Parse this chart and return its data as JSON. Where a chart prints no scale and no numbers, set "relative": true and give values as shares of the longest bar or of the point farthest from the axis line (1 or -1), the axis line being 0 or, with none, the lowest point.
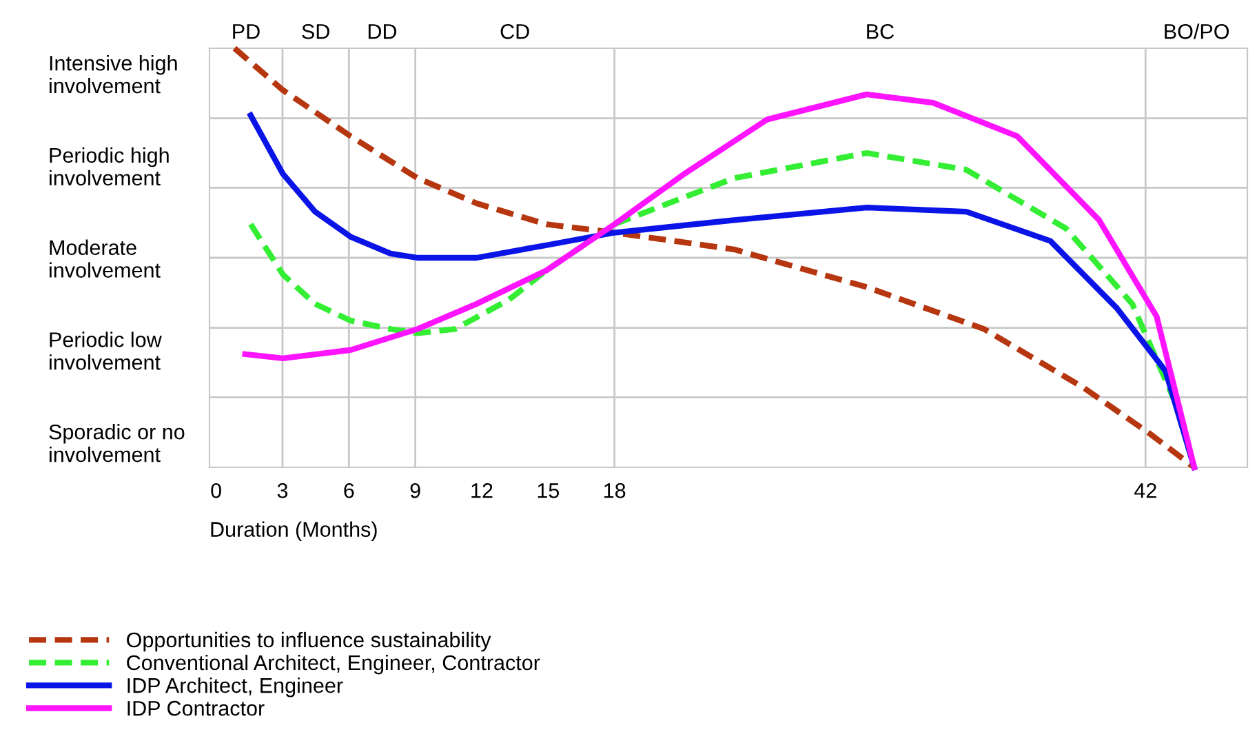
{
  "chart_data": {
    "type": "line",
    "relative": true,
    "xlabel": "Duration (Months)",
    "xlim": [
      -0.3,
      46.6
    ],
    "xticks": [
      0,
      3,
      6,
      9,
      12,
      15,
      18,
      42
    ],
    "annotations": [
      "Intensive high\ninvolvement",
      "Periodic high\ninvolvement",
      "Moderate\ninvolvement",
      "Periodic low\ninvolvement",
      "Sporadic or no\ninvolvement",
      "PD",
      "SD",
      "DD",
      "CD",
      "BC",
      "BO/PO"
    ],
    "ref_lines": [
      {
        "axis": "x",
        "value": 3,
        "color": "#c8c8c8"
      },
      {
        "axis": "x",
        "value": 6,
        "color": "#c8c8c8"
      },
      {
        "axis": "x",
        "value": 9,
        "color": "#c8c8c8"
      },
      {
        "axis": "x",
        "value": 18,
        "color": "#c8c8c8"
      },
      {
        "axis": "x",
        "value": 42,
        "color": "#c8c8c8"
      },
      {
        "axis": "y",
        "value": 0.167,
        "color": "#c8c8c8"
      },
      {
        "axis": "y",
        "value": 0.333,
        "color": "#c8c8c8"
      },
      {
        "axis": "y",
        "value": 0.5,
        "color": "#c8c8c8"
      },
      {
        "axis": "y",
        "value": 0.667,
        "color": "#c8c8c8"
      },
      {
        "axis": "y",
        "value": 0.833,
        "color": "#c8c8c8"
      }
    ],
    "legend": "bottom",
    "marker": "none",
    "series": [
      {
        "name": "Opportunities to influence sustainability",
        "color": "#b5360f",
        "line_style": "dashed",
        "x": [
          0.83,
          3.02,
          6.08,
          9.1,
          11.77,
          14.93,
          18,
          23.4,
          29.4,
          34.7,
          39.2,
          42.2,
          44.2
        ],
        "values": [
          1.0,
          0.9,
          0.79,
          0.69,
          0.63,
          0.58,
          0.56,
          0.52,
          0.43,
          0.33,
          0.19,
          0.08,
          0
        ]
      },
      {
        "name": "Conventional Architect, Engineer, Contractor",
        "color": "#33ee33",
        "line_style": "dashed",
        "x": [
          1.56,
          3.02,
          4.47,
          6.08,
          7.88,
          9.1,
          10.8,
          13.23,
          14.93,
          18,
          23.4,
          29.4,
          33.9,
          38.4,
          41.4,
          43.3,
          44.2
        ],
        "values": [
          0.58,
          0.46,
          0.39,
          0.35,
          0.33,
          0.32,
          0.33,
          0.4,
          0.47,
          0.58,
          0.69,
          0.75,
          0.71,
          0.57,
          0.39,
          0.16,
          0
        ]
      },
      {
        "name": "IDP Architect, Engineer",
        "color": "#0a14e6",
        "line_style": "solid",
        "x": [
          1.56,
          3.02,
          4.47,
          6.08,
          7.88,
          9.1,
          11.77,
          14.93,
          18,
          23.4,
          29.4,
          33.9,
          37.7,
          40.7,
          42.9,
          44.2
        ],
        "values": [
          0.84,
          0.7,
          0.61,
          0.55,
          0.51,
          0.5,
          0.5,
          0.53,
          0.56,
          0.59,
          0.62,
          0.61,
          0.54,
          0.38,
          0.23,
          0
        ]
      },
      {
        "name": "IDP Contractor",
        "color": "#ff14ff",
        "line_style": "solid",
        "x": [
          1.31,
          3.02,
          6.08,
          9.1,
          11.77,
          14.93,
          18,
          21.15,
          24.9,
          29.4,
          32.4,
          36.2,
          39.9,
          42.5,
          44.2
        ],
        "values": [
          0.27,
          0.26,
          0.28,
          0.33,
          0.39,
          0.47,
          0.58,
          0.7,
          0.83,
          0.89,
          0.87,
          0.79,
          0.59,
          0.36,
          0
        ]
      }
    ]
  }
}
